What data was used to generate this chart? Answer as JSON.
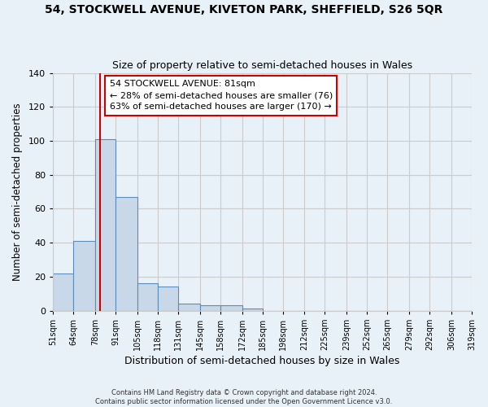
{
  "title": "54, STOCKWELL AVENUE, KIVETON PARK, SHEFFIELD, S26 5QR",
  "subtitle": "Size of property relative to semi-detached houses in Wales",
  "xlabel": "Distribution of semi-detached houses by size in Wales",
  "ylabel": "Number of semi-detached properties",
  "bin_labels": [
    "51sqm",
    "64sqm",
    "78sqm",
    "91sqm",
    "105sqm",
    "118sqm",
    "131sqm",
    "145sqm",
    "158sqm",
    "172sqm",
    "185sqm",
    "198sqm",
    "212sqm",
    "225sqm",
    "239sqm",
    "252sqm",
    "265sqm",
    "279sqm",
    "292sqm",
    "306sqm",
    "319sqm"
  ],
  "bin_edges": [
    51,
    64,
    78,
    91,
    105,
    118,
    131,
    145,
    158,
    172,
    185,
    198,
    212,
    225,
    239,
    252,
    265,
    279,
    292,
    306,
    319
  ],
  "bar_heights": [
    22,
    41,
    101,
    67,
    16,
    14,
    4,
    3,
    3,
    1,
    0,
    0,
    0,
    0,
    0,
    0,
    0,
    0,
    0,
    0
  ],
  "bar_color": "#c8d8e8",
  "bar_edge_color": "#5b8db8",
  "property_size": 81,
  "property_line_color": "#cc0000",
  "annotation_text": "54 STOCKWELL AVENUE: 81sqm\n← 28% of semi-detached houses are smaller (76)\n63% of semi-detached houses are larger (170) →",
  "annotation_box_color": "#ffffff",
  "annotation_box_edge": "#cc0000",
  "ylim": [
    0,
    140
  ],
  "yticks": [
    0,
    20,
    40,
    60,
    80,
    100,
    120,
    140
  ],
  "grid_color": "#cccccc",
  "bg_color": "#e8f0f8",
  "footer_line1": "Contains HM Land Registry data © Crown copyright and database right 2024.",
  "footer_line2": "Contains public sector information licensed under the Open Government Licence v3.0."
}
